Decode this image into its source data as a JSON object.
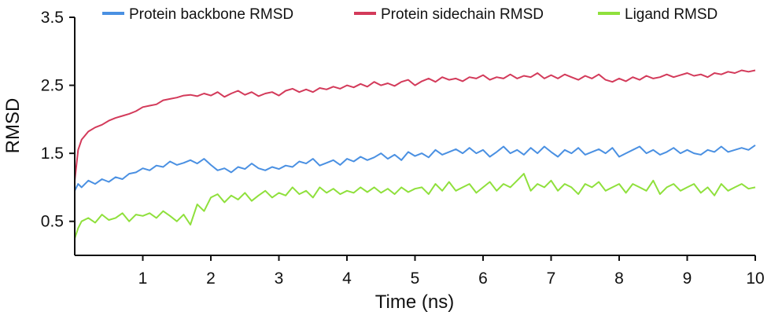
{
  "chart_data": {
    "type": "line",
    "xlabel": "Time (ns)",
    "ylabel": "RMSD",
    "xlim": [
      0,
      10
    ],
    "ylim": [
      0,
      3.5
    ],
    "xticks": [
      1,
      2,
      3,
      4,
      5,
      6,
      7,
      8,
      9,
      10
    ],
    "yticks": [
      0.5,
      1.5,
      2.5,
      3.5
    ],
    "legend_position": "top",
    "grid": false,
    "series": [
      {
        "name": "Protein backbone RMSD",
        "color": "#4a90e2",
        "x": [
          0,
          0.05,
          0.1,
          0.2,
          0.3,
          0.4,
          0.5,
          0.6,
          0.7,
          0.8,
          0.9,
          1.0,
          1.1,
          1.2,
          1.3,
          1.4,
          1.5,
          1.6,
          1.7,
          1.8,
          1.9,
          2.0,
          2.1,
          2.2,
          2.3,
          2.4,
          2.5,
          2.6,
          2.7,
          2.8,
          2.9,
          3.0,
          3.1,
          3.2,
          3.3,
          3.4,
          3.5,
          3.6,
          3.7,
          3.8,
          3.9,
          4.0,
          4.1,
          4.2,
          4.3,
          4.4,
          4.5,
          4.6,
          4.7,
          4.8,
          4.9,
          5.0,
          5.1,
          5.2,
          5.3,
          5.4,
          5.5,
          5.6,
          5.7,
          5.8,
          5.9,
          6.0,
          6.1,
          6.2,
          6.3,
          6.4,
          6.5,
          6.6,
          6.7,
          6.8,
          6.9,
          7.0,
          7.1,
          7.2,
          7.3,
          7.4,
          7.5,
          7.6,
          7.7,
          7.8,
          7.9,
          8.0,
          8.1,
          8.2,
          8.3,
          8.4,
          8.5,
          8.6,
          8.7,
          8.8,
          8.9,
          9.0,
          9.1,
          9.2,
          9.3,
          9.4,
          9.5,
          9.6,
          9.7,
          9.8,
          9.9,
          10.0
        ],
        "values": [
          0.95,
          1.05,
          1.0,
          1.1,
          1.05,
          1.12,
          1.08,
          1.15,
          1.12,
          1.2,
          1.22,
          1.28,
          1.25,
          1.32,
          1.3,
          1.38,
          1.33,
          1.36,
          1.4,
          1.35,
          1.42,
          1.33,
          1.25,
          1.28,
          1.22,
          1.3,
          1.27,
          1.35,
          1.28,
          1.25,
          1.3,
          1.27,
          1.32,
          1.3,
          1.38,
          1.35,
          1.42,
          1.32,
          1.36,
          1.4,
          1.33,
          1.42,
          1.38,
          1.45,
          1.4,
          1.44,
          1.5,
          1.42,
          1.48,
          1.4,
          1.52,
          1.46,
          1.5,
          1.44,
          1.55,
          1.48,
          1.52,
          1.56,
          1.5,
          1.58,
          1.5,
          1.55,
          1.45,
          1.52,
          1.6,
          1.5,
          1.55,
          1.48,
          1.58,
          1.5,
          1.6,
          1.52,
          1.45,
          1.55,
          1.5,
          1.58,
          1.48,
          1.52,
          1.56,
          1.5,
          1.58,
          1.45,
          1.5,
          1.55,
          1.6,
          1.5,
          1.55,
          1.48,
          1.52,
          1.58,
          1.5,
          1.55,
          1.5,
          1.48,
          1.55,
          1.52,
          1.6,
          1.52,
          1.55,
          1.58,
          1.55,
          1.62
        ]
      },
      {
        "name": "Protein sidechain RMSD",
        "color": "#d33a5a",
        "x": [
          0,
          0.05,
          0.1,
          0.2,
          0.3,
          0.4,
          0.5,
          0.6,
          0.7,
          0.8,
          0.9,
          1.0,
          1.1,
          1.2,
          1.3,
          1.4,
          1.5,
          1.6,
          1.7,
          1.8,
          1.9,
          2.0,
          2.1,
          2.2,
          2.3,
          2.4,
          2.5,
          2.6,
          2.7,
          2.8,
          2.9,
          3.0,
          3.1,
          3.2,
          3.3,
          3.4,
          3.5,
          3.6,
          3.7,
          3.8,
          3.9,
          4.0,
          4.1,
          4.2,
          4.3,
          4.4,
          4.5,
          4.6,
          4.7,
          4.8,
          4.9,
          5.0,
          5.1,
          5.2,
          5.3,
          5.4,
          5.5,
          5.6,
          5.7,
          5.8,
          5.9,
          6.0,
          6.1,
          6.2,
          6.3,
          6.4,
          6.5,
          6.6,
          6.7,
          6.8,
          6.9,
          7.0,
          7.1,
          7.2,
          7.3,
          7.4,
          7.5,
          7.6,
          7.7,
          7.8,
          7.9,
          8.0,
          8.1,
          8.2,
          8.3,
          8.4,
          8.5,
          8.6,
          8.7,
          8.8,
          8.9,
          9.0,
          9.1,
          9.2,
          9.3,
          9.4,
          9.5,
          9.6,
          9.7,
          9.8,
          9.9,
          10.0
        ],
        "values": [
          1.1,
          1.55,
          1.7,
          1.82,
          1.88,
          1.92,
          1.98,
          2.02,
          2.05,
          2.08,
          2.12,
          2.18,
          2.2,
          2.22,
          2.28,
          2.3,
          2.32,
          2.35,
          2.36,
          2.34,
          2.38,
          2.35,
          2.4,
          2.33,
          2.38,
          2.42,
          2.36,
          2.4,
          2.34,
          2.38,
          2.4,
          2.35,
          2.42,
          2.45,
          2.4,
          2.44,
          2.4,
          2.46,
          2.44,
          2.48,
          2.45,
          2.5,
          2.47,
          2.52,
          2.48,
          2.55,
          2.5,
          2.53,
          2.49,
          2.55,
          2.58,
          2.5,
          2.56,
          2.6,
          2.55,
          2.62,
          2.58,
          2.6,
          2.56,
          2.62,
          2.6,
          2.65,
          2.58,
          2.62,
          2.6,
          2.66,
          2.6,
          2.64,
          2.62,
          2.68,
          2.6,
          2.65,
          2.6,
          2.66,
          2.62,
          2.58,
          2.64,
          2.6,
          2.66,
          2.58,
          2.55,
          2.6,
          2.56,
          2.62,
          2.58,
          2.64,
          2.6,
          2.62,
          2.66,
          2.62,
          2.65,
          2.68,
          2.64,
          2.66,
          2.62,
          2.68,
          2.66,
          2.7,
          2.68,
          2.72,
          2.7,
          2.72
        ]
      },
      {
        "name": "Ligand RMSD",
        "color": "#8fe03c",
        "x": [
          0,
          0.05,
          0.1,
          0.2,
          0.3,
          0.4,
          0.5,
          0.6,
          0.7,
          0.8,
          0.9,
          1.0,
          1.1,
          1.2,
          1.3,
          1.4,
          1.5,
          1.6,
          1.7,
          1.8,
          1.9,
          2.0,
          2.1,
          2.2,
          2.3,
          2.4,
          2.5,
          2.6,
          2.7,
          2.8,
          2.9,
          3.0,
          3.1,
          3.2,
          3.3,
          3.4,
          3.5,
          3.6,
          3.7,
          3.8,
          3.9,
          4.0,
          4.1,
          4.2,
          4.3,
          4.4,
          4.5,
          4.6,
          4.7,
          4.8,
          4.9,
          5.0,
          5.1,
          5.2,
          5.3,
          5.4,
          5.5,
          5.6,
          5.7,
          5.8,
          5.9,
          6.0,
          6.1,
          6.2,
          6.3,
          6.4,
          6.5,
          6.6,
          6.7,
          6.8,
          6.9,
          7.0,
          7.1,
          7.2,
          7.3,
          7.4,
          7.5,
          7.6,
          7.7,
          7.8,
          7.9,
          8.0,
          8.1,
          8.2,
          8.3,
          8.4,
          8.5,
          8.6,
          8.7,
          8.8,
          8.9,
          9.0,
          9.1,
          9.2,
          9.3,
          9.4,
          9.5,
          9.6,
          9.7,
          9.8,
          9.9,
          10.0
        ],
        "values": [
          0.25,
          0.4,
          0.5,
          0.55,
          0.48,
          0.6,
          0.52,
          0.55,
          0.62,
          0.5,
          0.6,
          0.58,
          0.62,
          0.55,
          0.65,
          0.58,
          0.5,
          0.6,
          0.45,
          0.75,
          0.65,
          0.85,
          0.9,
          0.78,
          0.88,
          0.82,
          0.92,
          0.8,
          0.88,
          0.95,
          0.85,
          0.92,
          0.88,
          1.0,
          0.9,
          0.95,
          0.85,
          1.0,
          0.92,
          0.98,
          0.9,
          0.95,
          0.92,
          1.0,
          0.93,
          1.0,
          0.92,
          0.98,
          0.9,
          1.0,
          0.93,
          0.98,
          1.0,
          0.9,
          1.05,
          0.95,
          1.08,
          0.95,
          1.0,
          1.05,
          0.92,
          1.0,
          1.08,
          0.95,
          1.05,
          1.0,
          1.1,
          1.2,
          0.95,
          1.05,
          1.0,
          1.1,
          0.95,
          1.05,
          1.0,
          0.9,
          1.05,
          1.0,
          1.08,
          0.95,
          1.0,
          1.05,
          0.92,
          1.05,
          1.0,
          0.95,
          1.1,
          0.9,
          1.0,
          1.05,
          0.95,
          1.0,
          1.05,
          0.92,
          1.0,
          0.88,
          1.05,
          0.95,
          1.0,
          1.05,
          0.98,
          1.0
        ]
      }
    ]
  }
}
